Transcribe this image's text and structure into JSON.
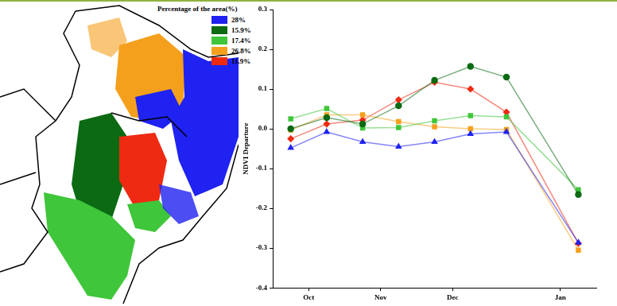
{
  "map": {
    "legend_title": "Percentage of the area(%)"
  },
  "chart_data": {
    "type": "line",
    "y_label": "NDVI Departure",
    "categories": [
      null,
      null,
      "Oct",
      null,
      null,
      null,
      "Nov",
      null,
      null,
      null,
      "Dec",
      null,
      null,
      null,
      null,
      null,
      "Jan",
      null,
      null
    ],
    "series": [
      {
        "name": "28%",
        "color": "#1f22f0",
        "marker": "triangle",
        "values": [
          null,
          -0.048,
          null,
          -0.008,
          null,
          -0.033,
          null,
          -0.045,
          null,
          -0.033,
          null,
          -0.013,
          null,
          -0.008,
          null,
          null,
          null,
          -0.286,
          null
        ]
      },
      {
        "name": "15.9%",
        "color": "#0b6a12",
        "marker": "circle",
        "values": [
          null,
          0.0,
          null,
          0.028,
          null,
          0.012,
          null,
          0.058,
          null,
          0.122,
          null,
          0.157,
          null,
          0.13,
          null,
          null,
          null,
          -0.165,
          null
        ]
      },
      {
        "name": "17.4%",
        "color": "#3fc63a",
        "marker": "square",
        "values": [
          null,
          0.025,
          null,
          0.051,
          null,
          0.002,
          null,
          0.003,
          null,
          0.02,
          null,
          0.033,
          null,
          0.03,
          null,
          null,
          null,
          -0.153,
          null
        ]
      },
      {
        "name": "26.8%",
        "color": "#f5a01c",
        "marker": "square",
        "values": [
          null,
          -0.003,
          null,
          0.035,
          null,
          0.035,
          null,
          0.018,
          null,
          0.005,
          null,
          0.0,
          null,
          -0.002,
          null,
          null,
          null,
          -0.305,
          null
        ]
      },
      {
        "name": "11.9%",
        "color": "#ee2a12",
        "marker": "diamond",
        "values": [
          null,
          -0.025,
          null,
          0.012,
          null,
          0.022,
          null,
          0.073,
          null,
          0.117,
          null,
          0.1,
          null,
          0.042,
          null,
          null,
          null,
          -0.288,
          null
        ]
      }
    ],
    "ylim": [
      -0.4,
      0.3
    ],
    "yticks": [
      -0.4,
      -0.3,
      -0.2,
      -0.1,
      {
        "value": 0,
        "label": "0.0"
      },
      0.1,
      0.2,
      0.3
    ],
    "grid": false
  }
}
